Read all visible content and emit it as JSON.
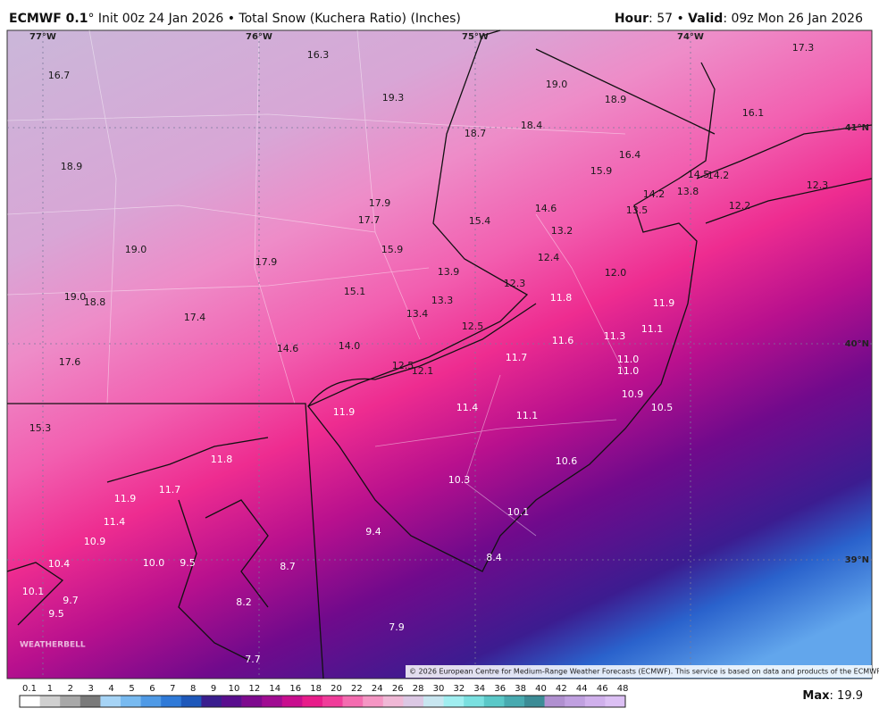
{
  "header": {
    "left": [
      {
        "text": "ECMWF 0.1",
        "bold": true
      },
      {
        "text": "° Init 00z 24 Jan 2026 • Total Snow (Kuchera Ratio) (Inches)",
        "bold": false
      }
    ],
    "right": [
      {
        "text": "Hour",
        "bold": true
      },
      {
        "text": ": 57 • ",
        "bold": false
      },
      {
        "text": "Valid",
        "bold": true
      },
      {
        "text": ": 09z Mon 26 Jan 2026",
        "bold": false
      }
    ]
  },
  "map": {
    "longitudes": [
      "77°W",
      "76°W",
      "75°W",
      "74°W"
    ],
    "latitudes": [
      "41°N",
      "40°N",
      "39°N"
    ],
    "values": [
      "16.7",
      "16.3",
      "19.3",
      "19.0",
      "18.9",
      "17.3",
      "16.1",
      "18.7",
      "18.4",
      "18.9",
      "16.4",
      "15.9",
      "14.5",
      "14.2",
      "14.2",
      "13.8",
      "12.3",
      "17.9",
      "17.7",
      "15.4",
      "14.6",
      "13.5",
      "12.2",
      "13.2",
      "19.0",
      "15.9",
      "17.9",
      "12.4",
      "13.9",
      "12.0",
      "12.3",
      "15.1",
      "19.0",
      "18.8",
      "13.3",
      "17.4",
      "13.4",
      "12.5",
      "14.6",
      "14.0",
      "17.6",
      "12.5",
      "12.1",
      "15.3",
      "11.8",
      "11.9",
      "11.1",
      "11.3",
      "11.6",
      "11.7",
      "11.0",
      "11.0",
      "10.9",
      "10.5",
      "11.4",
      "11.1",
      "11.9",
      "11.8",
      "11.9",
      "11.7",
      "11.4",
      "10.6",
      "10.3",
      "10.1",
      "9.4",
      "10.9",
      "8.4",
      "10.4",
      "10.0",
      "9.5",
      "8.7",
      "10.1",
      "9.7",
      "8.2",
      "9.5",
      "7.9",
      "7.7"
    ],
    "logo": "WEATHERBELL",
    "copyright": "© 2026 European Centre for Medium-Range Weather Forecasts (ECMWF). This service is based on data and products of the ECMWF."
  },
  "legend": {
    "ticks": [
      "0.1",
      "1",
      "2",
      "3",
      "4",
      "5",
      "6",
      "7",
      "8",
      "9",
      "10",
      "12",
      "14",
      "16",
      "18",
      "20",
      "22",
      "24",
      "26",
      "28",
      "30",
      "32",
      "34",
      "36",
      "38",
      "40",
      "42",
      "44",
      "46",
      "48"
    ],
    "colors": [
      "#ffffff",
      "#d0d0d0",
      "#a8a8a8",
      "#7a7a7a",
      "#a6d4f6",
      "#78baf0",
      "#4f9ae6",
      "#2f7ad8",
      "#1e58ba",
      "#3a1e8e",
      "#5a0e8e",
      "#7e0a8e",
      "#a00c92",
      "#c80e8e",
      "#e81c8a",
      "#f03c9a",
      "#f46cb0",
      "#f596c4",
      "#f0b8d6",
      "#dcc8e4",
      "#c8e6f0",
      "#a0eef0",
      "#7ae0e0",
      "#5ac8c8",
      "#48aab0",
      "#3c8c96",
      "#b090d0",
      "#c0a0e0",
      "#d0b0ec",
      "#dcc0f4"
    ],
    "max": [
      {
        "text": "Max",
        "bold": true
      },
      {
        "text": ": 19.9",
        "bold": false
      }
    ]
  }
}
